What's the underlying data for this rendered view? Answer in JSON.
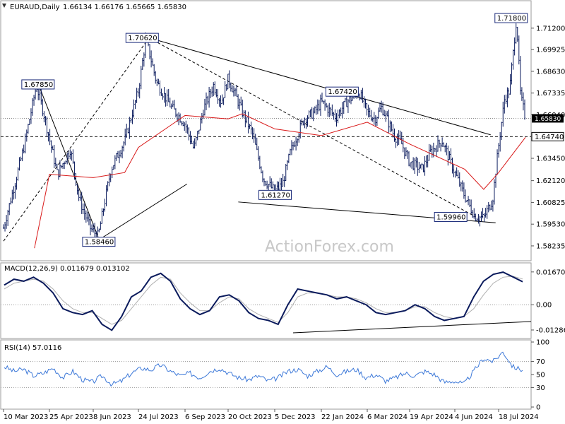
{
  "header": {
    "symbol": "EURAUD,Daily",
    "ohlc": "1.66134 1.66176 1.65665 1.65830"
  },
  "watermark": "ActionForex.com",
  "colors": {
    "price": "#0a1a5c",
    "sma": "#d81818",
    "trend": "#000000",
    "macd": "#0a1a5c",
    "signal": "#b0b0b0",
    "rsi": "#3c78d8",
    "current_tag_bg": "#000000",
    "current_tag_text": "#ffffff"
  },
  "chart_data": [
    {
      "type": "line",
      "title": "EURAUD,Daily",
      "ylim": [
        1.5756,
        1.7254
      ],
      "y_ticks": [
        "1.71200",
        "1.69925",
        "1.68630",
        "1.67335",
        "1.66040",
        "1.63450",
        "1.62120",
        "1.60825",
        "1.59530",
        "1.58235"
      ],
      "x_ticks": [
        "10 Mar 2023",
        "25 Apr 2023",
        "8 Jun 2023",
        "24 Jul 2023",
        "6 Sep 2023",
        "20 Oct 2023",
        "5 Dec 2023",
        "22 Jan 2024",
        "6 Mar 2024",
        "19 Apr 2024",
        "4 Jun 2024",
        "18 Jul 2024"
      ],
      "current_price": "1.65830",
      "horizontal_level": "1.64740",
      "series": [
        {
          "name": "",
          "x": [
            "10 Mar 2023",
            "30 Mar 2023",
            "12 Apr 2023",
            "19 Apr 2023",
            "3 May 2023",
            "16 May 2023",
            "25 May 2023",
            "5 Jun 2023",
            "13 Jun 2023",
            "26 Jun 2023",
            "10 Jul 2023",
            "24 Jul 2023",
            "31 Jul 2023",
            "10 Aug 2023",
            "24 Aug 2023",
            "6 Sep 2023",
            "15 Sep 2023",
            "25 Sep 2023",
            "5 Oct 2023",
            "13 Oct 2023",
            "20 Oct 2023",
            "26 Oct 2023",
            "3 Nov 2023",
            "13 Nov 2023",
            "24 Nov 2023",
            "5 Dec 2023",
            "13 Dec 2023",
            "21 Dec 2023",
            "4 Jan 2024",
            "15 Jan 2024",
            "22 Jan 2024",
            "5 Feb 2024",
            "15 Feb 2024",
            "27 Feb 2024",
            "6 Mar 2024",
            "14 Mar 2024",
            "21 Mar 2024",
            "3 Apr 2024",
            "10 Apr 2024",
            "19 Apr 2024",
            "2 May 2024",
            "10 May 2024",
            "22 May 2024",
            "4 Jun 2024",
            "14 Jun 2024",
            "24 Jun 2024",
            "3 Jul 2024",
            "12 Jul 2024",
            "18 Jul 2024",
            "24 Jul 2024",
            "29 Jul 2024",
            "5 Aug 2024",
            "9 Aug 2024",
            "14 Aug 2024"
          ],
          "values": [
            1.593,
            1.64,
            1.678,
            1.662,
            1.625,
            1.64,
            1.61,
            1.593,
            1.588,
            1.628,
            1.645,
            1.675,
            1.706,
            1.68,
            1.665,
            1.655,
            1.64,
            1.664,
            1.678,
            1.668,
            1.682,
            1.674,
            1.662,
            1.649,
            1.622,
            1.615,
            1.619,
            1.638,
            1.658,
            1.662,
            1.668,
            1.659,
            1.668,
            1.674,
            1.662,
            1.658,
            1.665,
            1.648,
            1.644,
            1.632,
            1.628,
            1.638,
            1.645,
            1.626,
            1.612,
            1.6,
            1.599,
            1.61,
            1.642,
            1.67,
            1.675,
            1.718,
            1.672,
            1.6583
          ]
        },
        {
          "name": "",
          "x": [
            "10 Apr 2023",
            "25 Apr 2023",
            "8 Jun 2023",
            "10 Jul 2023",
            "24 Jul 2023",
            "6 Sep 2023",
            "20 Oct 2023",
            "3 Nov 2023",
            "5 Dec 2023",
            "22 Jan 2024",
            "6 Mar 2024",
            "19 Apr 2024",
            "14 Jun 2024",
            "3 Jul 2024",
            "18 Jul 2024",
            "14 Aug 2024"
          ],
          "values": [
            1.581,
            1.625,
            1.623,
            1.626,
            1.641,
            1.66,
            1.658,
            1.661,
            1.652,
            1.648,
            1.656,
            1.643,
            1.628,
            1.616,
            1.626,
            1.647
          ]
        }
      ],
      "annotations": [
        "1.67850",
        "1.70620",
        "1.58460",
        "1.61270",
        "1.67420",
        "1.59960",
        "1.71800",
        "1.65830",
        "1.64740"
      ]
    },
    {
      "type": "line",
      "title": "MACD(12,26,9) 0.011679 0.013102",
      "ylim": [
        -0.01612,
        0.02024
      ],
      "y_ticks": [
        "0.016704",
        "0.00",
        "-0.012869"
      ],
      "series": [
        {
          "name": "",
          "values": [
            0.01,
            0.013,
            0.012,
            0.014,
            0.011,
            0.006,
            -0.002,
            -0.004,
            -0.005,
            -0.003,
            -0.01,
            -0.013,
            -0.006,
            0.004,
            0.007,
            0.014,
            0.016,
            0.012,
            0.003,
            -0.002,
            -0.005,
            -0.003,
            0.004,
            0.005,
            0.002,
            -0.004,
            -0.007,
            -0.008,
            -0.01,
            0.0,
            0.008,
            0.007,
            0.006,
            0.005,
            0.003,
            0.004,
            0.002,
            0.0,
            -0.004,
            -0.005,
            -0.004,
            -0.003,
            0.0,
            -0.002,
            -0.006,
            -0.008,
            -0.007,
            -0.006,
            0.004,
            0.012,
            0.0155,
            0.0166,
            0.0142,
            0.0117
          ]
        },
        {
          "name": "",
          "values": [
            0.008,
            0.011,
            0.012,
            0.013,
            0.012,
            0.008,
            0.002,
            -0.002,
            -0.004,
            -0.004,
            -0.007,
            -0.01,
            -0.008,
            -0.002,
            0.004,
            0.01,
            0.014,
            0.013,
            0.006,
            0.001,
            -0.003,
            -0.003,
            0.001,
            0.004,
            0.003,
            -0.002,
            -0.005,
            -0.007,
            -0.009,
            -0.004,
            0.004,
            0.006,
            0.006,
            0.005,
            0.004,
            0.004,
            0.003,
            0.001,
            -0.002,
            -0.004,
            -0.004,
            -0.003,
            -0.001,
            -0.001,
            -0.004,
            -0.006,
            -0.007,
            -0.006,
            -0.002,
            0.005,
            0.011,
            0.014,
            0.0145,
            0.0131
          ]
        }
      ],
      "baseline": "0.00"
    },
    {
      "type": "line",
      "title": "RSI(14) 57.0116",
      "ylim": [
        0,
        100
      ],
      "y_ticks": [
        "100",
        "70",
        "50",
        "30",
        "0"
      ],
      "levels": [
        70,
        30
      ],
      "series": [
        {
          "name": "",
          "values": [
            62,
            55,
            58,
            48,
            52,
            60,
            45,
            55,
            42,
            38,
            48,
            35,
            40,
            52,
            60,
            57,
            65,
            55,
            48,
            52,
            45,
            55,
            60,
            52,
            45,
            42,
            48,
            40,
            45,
            55,
            58,
            48,
            55,
            62,
            50,
            55,
            58,
            45,
            50,
            40,
            45,
            52,
            48,
            55,
            50,
            38,
            40,
            35,
            55,
            75,
            70,
            85,
            62,
            57
          ]
        }
      ]
    }
  ]
}
